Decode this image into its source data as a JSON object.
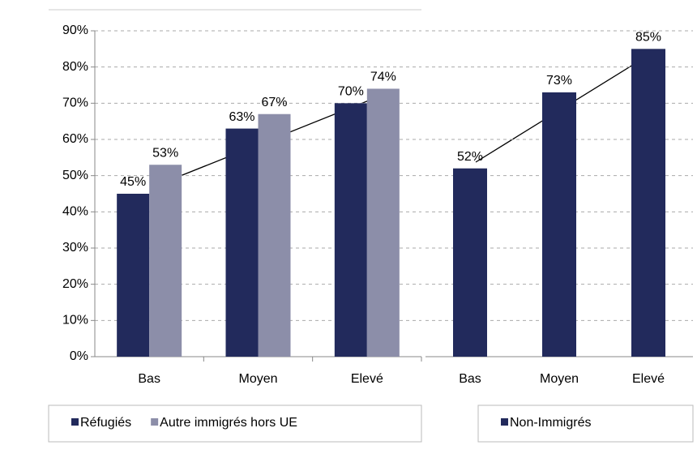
{
  "chart_data": [
    {
      "type": "bar",
      "categories": [
        "Bas",
        "Moyen",
        "Elevé"
      ],
      "series": [
        {
          "name": "Réfugiés",
          "color": "#222a5c",
          "values": [
            45,
            63,
            70
          ],
          "value_labels": [
            "45%",
            "63%",
            "70%"
          ]
        },
        {
          "name": "Autre immigrés hors UE",
          "color": "#8c8ea9",
          "values": [
            53,
            67,
            74
          ],
          "value_labels": [
            "53%",
            "67%",
            "74%"
          ]
        }
      ],
      "ylim": [
        0,
        90
      ],
      "yticks": [
        {
          "value": 0,
          "label": "0%"
        },
        {
          "value": 10,
          "label": "10%"
        },
        {
          "value": 20,
          "label": "20%"
        },
        {
          "value": 30,
          "label": "30%"
        },
        {
          "value": 40,
          "label": "40%"
        },
        {
          "value": 50,
          "label": "50%"
        },
        {
          "value": 60,
          "label": "60%"
        },
        {
          "value": 70,
          "label": "70%"
        },
        {
          "value": 80,
          "label": "80%"
        },
        {
          "value": 90,
          "label": "90%"
        }
      ],
      "grid": true,
      "legend": "bottom"
    },
    {
      "type": "bar",
      "categories": [
        "Bas",
        "Moyen",
        "Elevé"
      ],
      "series": [
        {
          "name": "Non-Immigrés",
          "color": "#222a5c",
          "values": [
            52,
            73,
            85
          ],
          "value_labels": [
            "52%",
            "73%",
            "85%"
          ]
        }
      ],
      "ylim": [
        0,
        90
      ],
      "yticks": [
        0,
        10,
        20,
        30,
        40,
        50,
        60,
        70,
        80,
        90
      ],
      "grid": true,
      "legend": "bottom"
    }
  ]
}
